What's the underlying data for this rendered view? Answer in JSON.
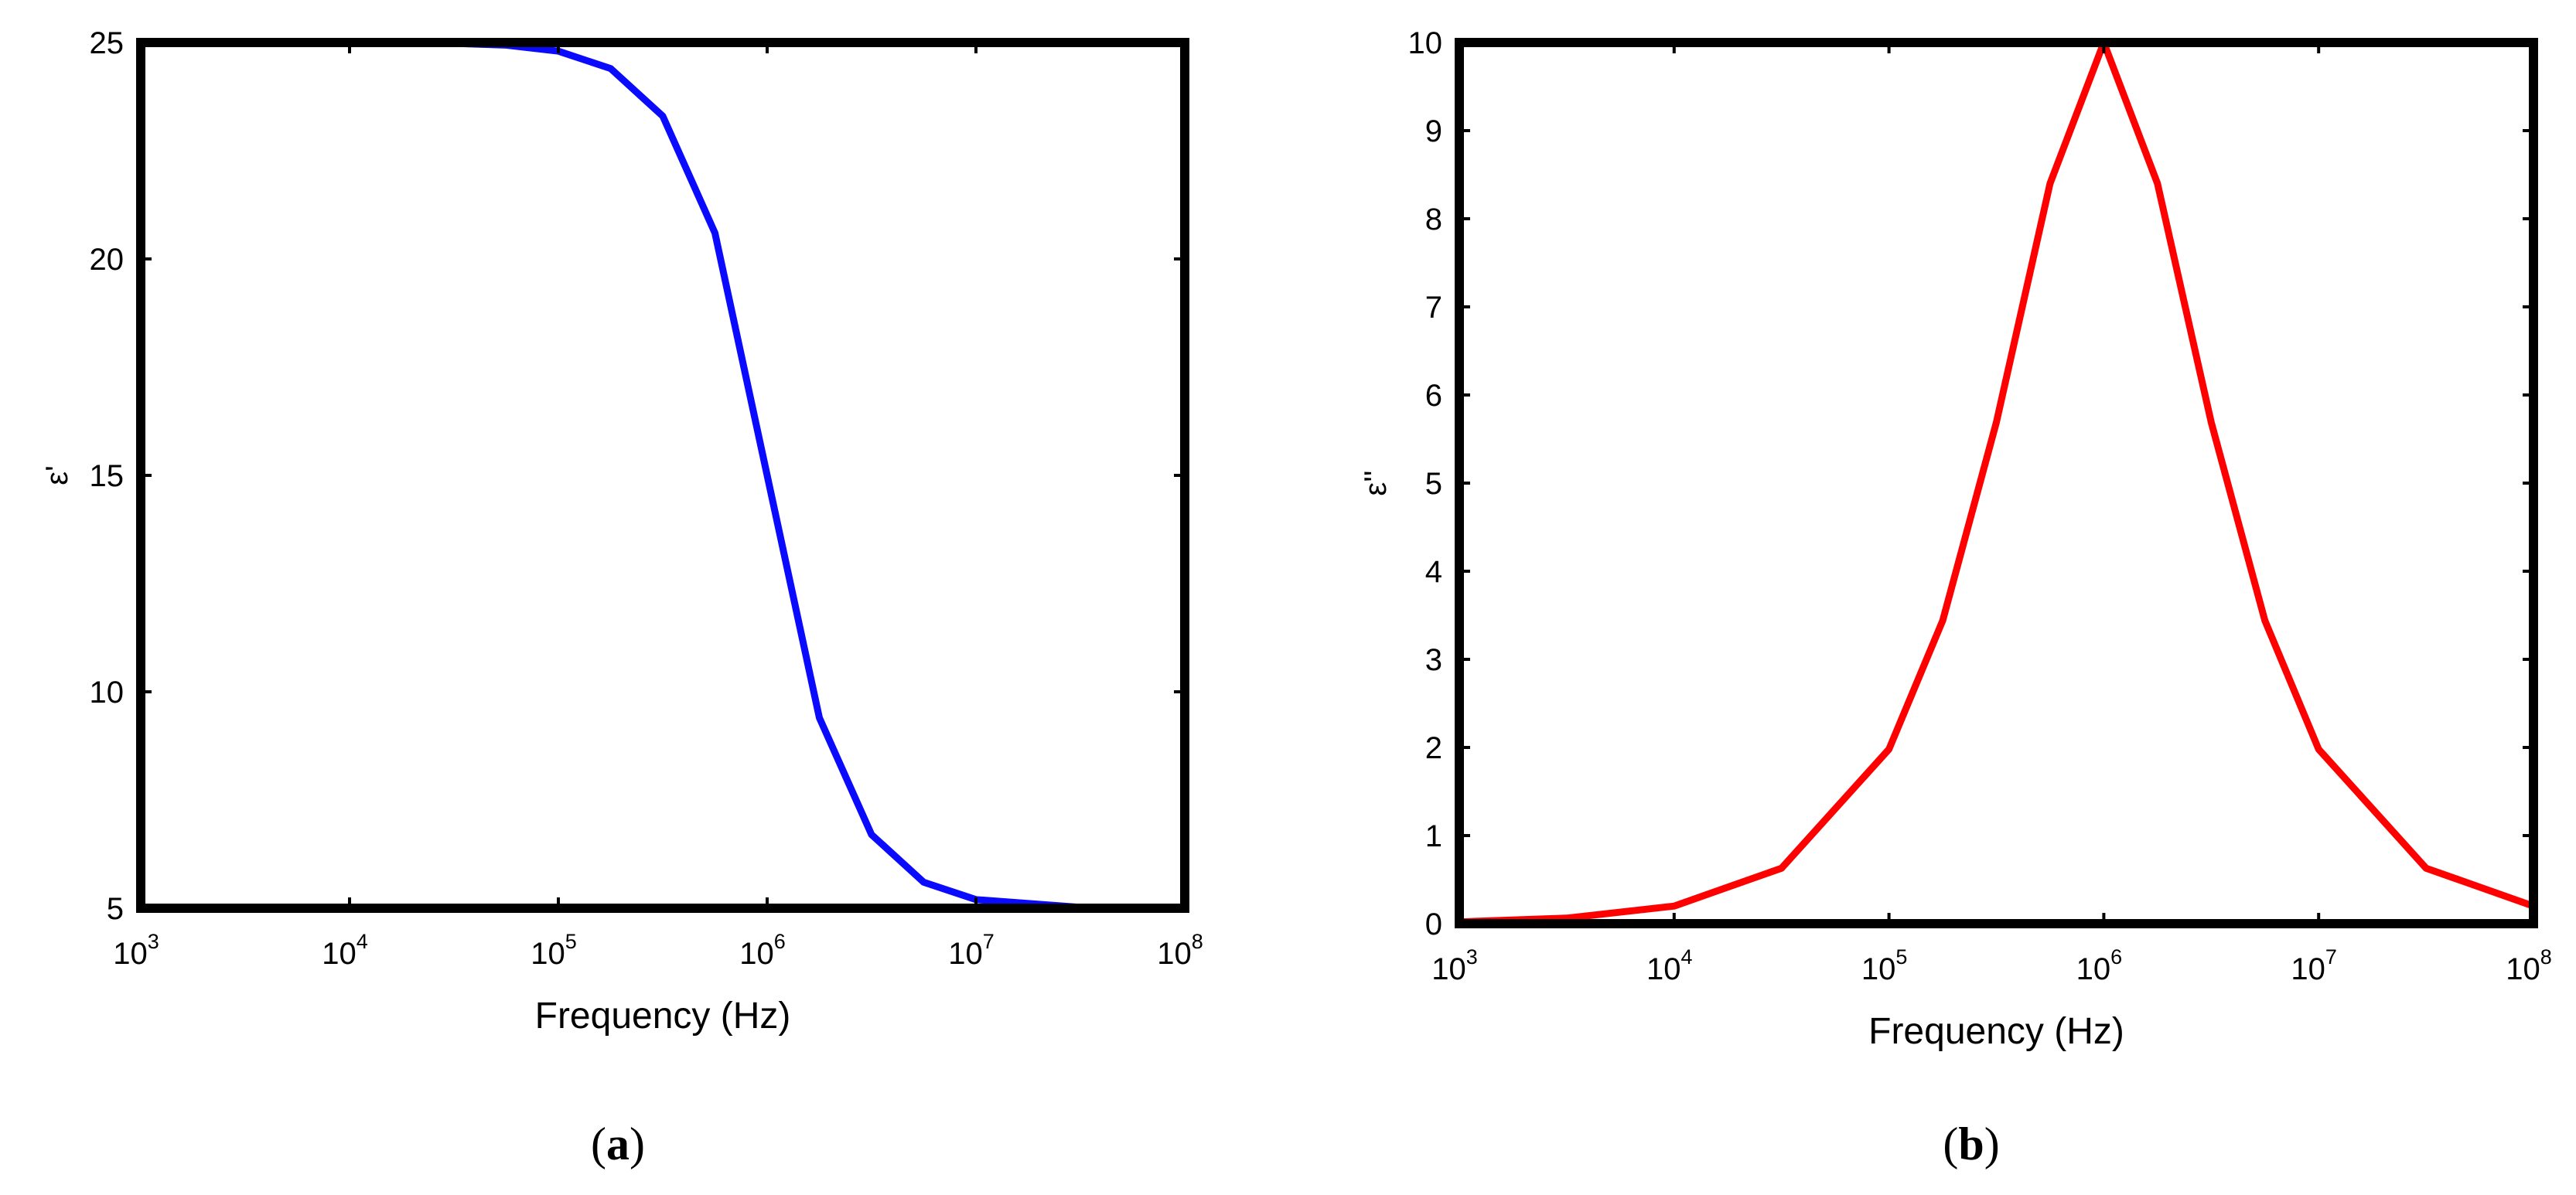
{
  "chart_data": [
    {
      "type": "line",
      "caption_open": "(",
      "caption_letter": "a",
      "caption_close": ")",
      "xlabel": "Frequency (Hz)",
      "ylabel": "ε'",
      "xscale": "log",
      "xlim": [
        1000,
        100000000
      ],
      "ylim": [
        5,
        25
      ],
      "xticks": [
        {
          "value": 1000,
          "base": "10",
          "exp": "3"
        },
        {
          "value": 10000,
          "base": "10",
          "exp": "4"
        },
        {
          "value": 100000,
          "base": "10",
          "exp": "5"
        },
        {
          "value": 1000000,
          "base": "10",
          "exp": "6"
        },
        {
          "value": 10000000,
          "base": "10",
          "exp": "7"
        },
        {
          "value": 100000000,
          "base": "10",
          "exp": "8"
        }
      ],
      "yticks": [
        5,
        10,
        15,
        20,
        25
      ],
      "grid": false,
      "series": [
        {
          "color": "#0a0aff",
          "x": [
            1000,
            3162,
            10000,
            31623,
            56234,
            100000,
            177828,
            316228,
            562341,
            1000000,
            1778279,
            3162278,
            5623413,
            10000000,
            31622777,
            100000000
          ],
          "y": [
            25.0,
            25.0,
            25.0,
            24.98,
            24.94,
            24.8,
            24.4,
            23.3,
            20.6,
            15.0,
            9.4,
            6.7,
            5.6,
            5.2,
            5.02,
            5.0
          ]
        }
      ]
    },
    {
      "type": "line",
      "caption_open": "(",
      "caption_letter": "b",
      "caption_close": ")",
      "xlabel": "Frequency (Hz)",
      "ylabel": "ε''",
      "xscale": "log",
      "xlim": [
        1000,
        100000000
      ],
      "ylim": [
        0,
        10
      ],
      "xticks": [
        {
          "value": 1000,
          "base": "10",
          "exp": "3"
        },
        {
          "value": 10000,
          "base": "10",
          "exp": "4"
        },
        {
          "value": 100000,
          "base": "10",
          "exp": "5"
        },
        {
          "value": 1000000,
          "base": "10",
          "exp": "6"
        },
        {
          "value": 10000000,
          "base": "10",
          "exp": "7"
        },
        {
          "value": 100000000,
          "base": "10",
          "exp": "8"
        }
      ],
      "yticks": [
        0,
        1,
        2,
        3,
        4,
        5,
        6,
        7,
        8,
        9,
        10
      ],
      "grid": false,
      "series": [
        {
          "color": "#ff0000",
          "x": [
            1000,
            3162,
            10000,
            31623,
            100000,
            177828,
            316228,
            562341,
            1000000,
            1778279,
            3162278,
            5623413,
            10000000,
            31622777,
            100000000
          ],
          "y": [
            0.02,
            0.063,
            0.2,
            0.63,
            1.98,
            3.44,
            5.69,
            8.4,
            10.0,
            8.4,
            5.69,
            3.44,
            1.98,
            0.63,
            0.2
          ]
        }
      ]
    }
  ]
}
